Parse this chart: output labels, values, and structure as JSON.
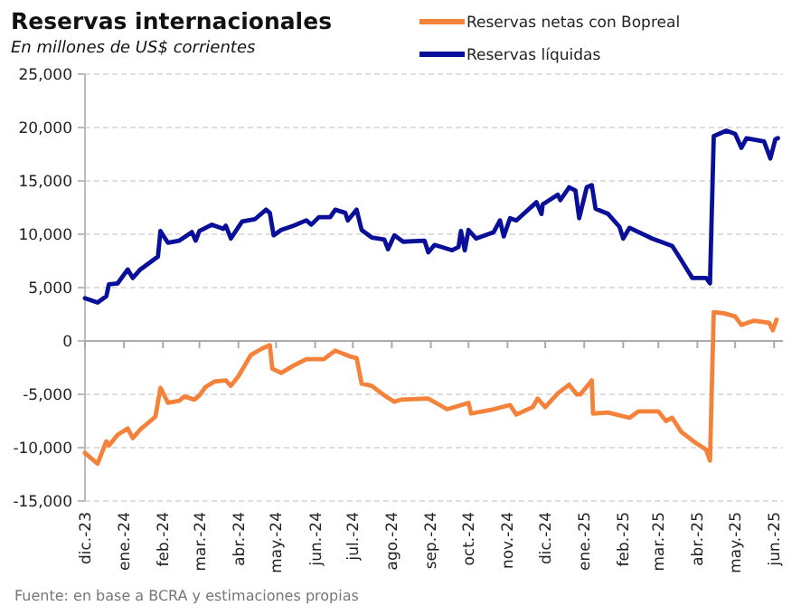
{
  "chart_data": {
    "type": "line",
    "title": "Reservas internacionales",
    "subtitle": "En millones de US$ corrientes",
    "annotations": [
      "Fuente: en base a BCRA y estimaciones propias"
    ],
    "xlim": [
      "2023-12-01",
      "2025-06-08"
    ],
    "xticks": [
      {
        "value": "2023-12-01",
        "label": "dic.-23"
      },
      {
        "value": "2024-01-01",
        "label": "ene.-24"
      },
      {
        "value": "2024-02-01",
        "label": "feb.-24"
      },
      {
        "value": "2024-03-01",
        "label": "mar.-24"
      },
      {
        "value": "2024-04-01",
        "label": "abr.-24"
      },
      {
        "value": "2024-05-01",
        "label": "may.-24"
      },
      {
        "value": "2024-06-01",
        "label": "jun.-24"
      },
      {
        "value": "2024-07-01",
        "label": "jul.-24"
      },
      {
        "value": "2024-08-01",
        "label": "ago.-24"
      },
      {
        "value": "2024-09-01",
        "label": "sep.-24"
      },
      {
        "value": "2024-10-01",
        "label": "oct.-24"
      },
      {
        "value": "2024-11-01",
        "label": "nov.-24"
      },
      {
        "value": "2024-12-01",
        "label": "dic.-24"
      },
      {
        "value": "2025-01-01",
        "label": "ene.-25"
      },
      {
        "value": "2025-02-01",
        "label": "feb.-25"
      },
      {
        "value": "2025-03-01",
        "label": "mar.-25"
      },
      {
        "value": "2025-04-01",
        "label": "abr.-25"
      },
      {
        "value": "2025-05-01",
        "label": "may.-25"
      },
      {
        "value": "2025-06-01",
        "label": "jun.-25"
      }
    ],
    "ylim": [
      -15000,
      25000
    ],
    "yticks": [
      {
        "value": -15000,
        "label": "-15,000"
      },
      {
        "value": -10000,
        "label": "-10,000"
      },
      {
        "value": -5000,
        "label": "-5,000"
      },
      0,
      {
        "value": 5000,
        "label": "5,000"
      },
      {
        "value": 10000,
        "label": "10,000"
      },
      {
        "value": 15000,
        "label": "15,000"
      },
      {
        "value": 20000,
        "label": "20,000"
      },
      {
        "value": 25000,
        "label": "25,000"
      }
    ],
    "grid": "y",
    "legend": "top right",
    "line_style": "solid",
    "marker": "none",
    "series": [
      {
        "name": "Reservas netas con Bopreal",
        "color": "#f5823a",
        "x": [
          "2023-12-01",
          "2023-12-11",
          "2023-12-18",
          "2023-12-20",
          "2023-12-27",
          "2024-01-04",
          "2024-01-08",
          "2024-01-14",
          "2024-01-26",
          "2024-01-30",
          "2024-02-05",
          "2024-02-14",
          "2024-02-18",
          "2024-02-26",
          "2024-03-01",
          "2024-03-06",
          "2024-03-13",
          "2024-03-22",
          "2024-03-26",
          "2024-04-01",
          "2024-04-11",
          "2024-04-20",
          "2024-04-26",
          "2024-04-28",
          "2024-05-05",
          "2024-05-15",
          "2024-05-25",
          "2024-06-08",
          "2024-06-17",
          "2024-06-30",
          "2024-07-04",
          "2024-07-08",
          "2024-07-16",
          "2024-07-26",
          "2024-08-03",
          "2024-08-08",
          "2024-08-30",
          "2024-09-14",
          "2024-10-01",
          "2024-10-03",
          "2024-10-21",
          "2024-11-03",
          "2024-11-08",
          "2024-11-21",
          "2024-11-25",
          "2024-12-01",
          "2024-12-11",
          "2024-12-20",
          "2024-12-26",
          "2024-12-29",
          "2025-01-07",
          "2025-01-08",
          "2025-01-20",
          "2025-02-06",
          "2025-02-13",
          "2025-03-01",
          "2025-03-07",
          "2025-03-12",
          "2025-03-19",
          "2025-03-30",
          "2025-04-08",
          "2025-04-11",
          "2025-04-14",
          "2025-04-22",
          "2025-05-01",
          "2025-05-06",
          "2025-05-16",
          "2025-05-28",
          "2025-05-31",
          "2025-06-03"
        ],
        "values": [
          -10500,
          -11500,
          -9400,
          -9800,
          -8800,
          -8200,
          -9100,
          -8300,
          -7100,
          -4400,
          -5800,
          -5600,
          -5200,
          -5500,
          -5100,
          -4300,
          -3800,
          -3700,
          -4200,
          -3300,
          -1300,
          -700,
          -400,
          -2600,
          -3000,
          -2300,
          -1700,
          -1700,
          -900,
          -1500,
          -1600,
          -4000,
          -4200,
          -5100,
          -5700,
          -5500,
          -5400,
          -6400,
          -5800,
          -6800,
          -6400,
          -6000,
          -6900,
          -6200,
          -5400,
          -6200,
          -4900,
          -4100,
          -5000,
          -5000,
          -3700,
          -6800,
          -6700,
          -7200,
          -6600,
          -6600,
          -7500,
          -7200,
          -8500,
          -9500,
          -10200,
          -11200,
          2700,
          2600,
          2300,
          1500,
          1900,
          1700,
          1000,
          2000
        ]
      },
      {
        "name": "Reservas líquidas",
        "color": "#0a0f9a",
        "x": [
          "2023-12-01",
          "2023-12-11",
          "2023-12-18",
          "2023-12-20",
          "2023-12-27",
          "2024-01-04",
          "2024-01-08",
          "2024-01-14",
          "2024-01-28",
          "2024-01-30",
          "2024-02-05",
          "2024-02-14",
          "2024-02-24",
          "2024-02-27",
          "2024-03-01",
          "2024-03-11",
          "2024-03-20",
          "2024-03-22",
          "2024-03-26",
          "2024-04-04",
          "2024-04-14",
          "2024-04-23",
          "2024-04-26",
          "2024-04-29",
          "2024-05-05",
          "2024-05-15",
          "2024-05-25",
          "2024-05-29",
          "2024-06-04",
          "2024-06-13",
          "2024-06-17",
          "2024-06-25",
          "2024-06-27",
          "2024-07-04",
          "2024-07-08",
          "2024-07-16",
          "2024-07-26",
          "2024-07-29",
          "2024-08-03",
          "2024-08-10",
          "2024-08-27",
          "2024-08-30",
          "2024-09-04",
          "2024-09-18",
          "2024-09-23",
          "2024-09-25",
          "2024-09-28",
          "2024-10-01",
          "2024-10-07",
          "2024-10-21",
          "2024-10-26",
          "2024-10-29",
          "2024-11-03",
          "2024-11-08",
          "2024-11-24",
          "2024-11-28",
          "2024-11-29",
          "2024-12-11",
          "2024-12-13",
          "2024-12-20",
          "2024-12-25",
          "2024-12-28",
          "2025-01-03",
          "2025-01-07",
          "2025-01-10",
          "2025-01-20",
          "2025-01-29",
          "2025-02-01",
          "2025-02-06",
          "2025-02-24",
          "2025-03-12",
          "2025-03-19",
          "2025-03-28",
          "2025-04-08",
          "2025-04-11",
          "2025-04-14",
          "2025-04-24",
          "2025-05-01",
          "2025-05-06",
          "2025-05-10",
          "2025-05-24",
          "2025-05-29",
          "2025-06-02",
          "2025-06-04"
        ],
        "values": [
          4000,
          3600,
          4200,
          5300,
          5400,
          6700,
          5900,
          6700,
          7900,
          10300,
          9200,
          9400,
          10200,
          9400,
          10300,
          10900,
          10500,
          10800,
          9600,
          11200,
          11400,
          12300,
          12000,
          9900,
          10400,
          10800,
          11300,
          10900,
          11600,
          11600,
          12300,
          12000,
          11300,
          12300,
          10400,
          9700,
          9500,
          8600,
          9900,
          9300,
          9400,
          8300,
          9000,
          8500,
          8800,
          10300,
          8500,
          10400,
          9600,
          10200,
          11300,
          9800,
          11500,
          11300,
          13000,
          11900,
          12800,
          13700,
          13200,
          14400,
          14100,
          11500,
          14400,
          14600,
          12400,
          11900,
          10700,
          9600,
          10600,
          9600,
          8900,
          7600,
          5900,
          5900,
          5400,
          19200,
          19700,
          19400,
          18100,
          19000,
          18700,
          17100,
          18900,
          19000
        ]
      }
    ]
  }
}
